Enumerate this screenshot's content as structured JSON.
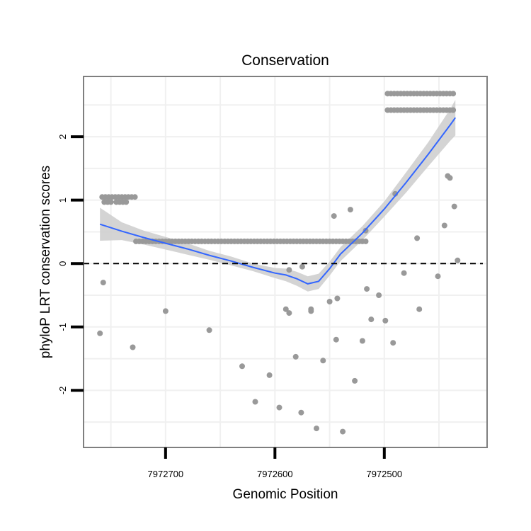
{
  "chart_data": {
    "type": "scatter",
    "title": "Conservation",
    "xlabel": "Genomic Position",
    "ylabel": "phyloP LRT conservation scores",
    "x_reversed": true,
    "xlim": [
      7972775,
      7972406
    ],
    "ylim": [
      -2.9,
      2.95
    ],
    "x_ticks": [
      {
        "value": 7972700,
        "label": "7972700"
      },
      {
        "value": 7972600,
        "label": "7972600"
      },
      {
        "value": 7972500,
        "label": "7972500"
      }
    ],
    "y_ticks": [
      {
        "value": 2,
        "label": "2"
      },
      {
        "value": 1,
        "label": "1"
      },
      {
        "value": 0,
        "label": "0"
      },
      {
        "value": -1,
        "label": "-1"
      },
      {
        "value": -2,
        "label": "-2"
      }
    ],
    "reference_line": {
      "y": 0,
      "style": "dashed"
    },
    "grid": true,
    "colors": {
      "points": "#999999",
      "smooth": "#3366FF",
      "ribbon": "#cccccc",
      "frame": "#7f7f7f",
      "grid": "#f0f0f0"
    },
    "smooth": {
      "x": [
        7972760,
        7972740,
        7972720,
        7972700,
        7972680,
        7972660,
        7972640,
        7972620,
        7972600,
        7972590,
        7972580,
        7972570,
        7972560,
        7972550,
        7972540,
        7972520,
        7972500,
        7972480,
        7972460,
        7972440,
        7972435
      ],
      "y": [
        0.62,
        0.51,
        0.41,
        0.32,
        0.23,
        0.13,
        0.04,
        -0.06,
        -0.15,
        -0.18,
        -0.24,
        -0.32,
        -0.28,
        -0.08,
        0.15,
        0.48,
        0.86,
        1.28,
        1.72,
        2.18,
        2.3
      ],
      "ymin": [
        0.36,
        0.37,
        0.3,
        0.22,
        0.14,
        0.06,
        -0.03,
        -0.12,
        -0.23,
        -0.28,
        -0.35,
        -0.44,
        -0.4,
        -0.19,
        0.04,
        0.37,
        0.74,
        1.12,
        1.53,
        1.93,
        2.02
      ],
      "ymax": [
        0.88,
        0.65,
        0.52,
        0.42,
        0.32,
        0.2,
        0.11,
        0.0,
        -0.07,
        -0.08,
        -0.13,
        -0.2,
        -0.16,
        0.03,
        0.26,
        0.59,
        0.98,
        1.44,
        1.91,
        2.43,
        2.58
      ]
    },
    "points": {
      "x": [
        7972758,
        7972755,
        7972752,
        7972749,
        7972746,
        7972743,
        7972740,
        7972737,
        7972734,
        7972731,
        7972728,
        7972756,
        7972753,
        7972750,
        7972745,
        7972742,
        7972739,
        7972736,
        7972727,
        7972724,
        7972721,
        7972718,
        7972715,
        7972712,
        7972709,
        7972706,
        7972703,
        7972700,
        7972697,
        7972694,
        7972691,
        7972688,
        7972685,
        7972682,
        7972679,
        7972676,
        7972673,
        7972670,
        7972667,
        7972664,
        7972661,
        7972658,
        7972655,
        7972652,
        7972649,
        7972646,
        7972643,
        7972640,
        7972637,
        7972634,
        7972631,
        7972628,
        7972625,
        7972622,
        7972619,
        7972616,
        7972613,
        7972610,
        7972607,
        7972604,
        7972601,
        7972598,
        7972595,
        7972592,
        7972589,
        7972586,
        7972583,
        7972580,
        7972577,
        7972574,
        7972571,
        7972568,
        7972565,
        7972562,
        7972559,
        7972556,
        7972553,
        7972550,
        7972547,
        7972544,
        7972541,
        7972538,
        7972535,
        7972532,
        7972529,
        7972526,
        7972523,
        7972520,
        7972517,
        7972497,
        7972494,
        7972491,
        7972488,
        7972485,
        7972482,
        7972479,
        7972476,
        7972473,
        7972470,
        7972467,
        7972464,
        7972461,
        7972458,
        7972455,
        7972452,
        7972449,
        7972446,
        7972443,
        7972440,
        7972437,
        7972497,
        7972494,
        7972491,
        7972488,
        7972485,
        7972482,
        7972479,
        7972476,
        7972473,
        7972470,
        7972467,
        7972464,
        7972461,
        7972458,
        7972455,
        7972452,
        7972449,
        7972446,
        7972443,
        7972440,
        7972437,
        7972760,
        7972757,
        7972730,
        7972700,
        7972660,
        7972630,
        7972618,
        7972605,
        7972596,
        7972590,
        7972587,
        7972581,
        7972576,
        7972567,
        7972562,
        7972556,
        7972550,
        7972544,
        7972538,
        7972527,
        7972520,
        7972516,
        7972512,
        7972505,
        7972499,
        7972492,
        7972482,
        7972470,
        7972451,
        7972445,
        7972440,
        7972433,
        7972442,
        7972436,
        7972468,
        7972531,
        7972546,
        7972567,
        7972575,
        7972587,
        7972543,
        7972490,
        7972517
      ],
      "y": [
        1.05,
        1.05,
        1.05,
        1.05,
        1.05,
        1.05,
        1.05,
        1.05,
        1.05,
        1.05,
        1.05,
        0.97,
        0.97,
        0.97,
        0.97,
        0.97,
        0.97,
        0.97,
        0.35,
        0.35,
        0.35,
        0.35,
        0.35,
        0.35,
        0.35,
        0.35,
        0.35,
        0.35,
        0.35,
        0.35,
        0.35,
        0.35,
        0.35,
        0.35,
        0.35,
        0.35,
        0.35,
        0.35,
        0.35,
        0.35,
        0.35,
        0.35,
        0.35,
        0.35,
        0.35,
        0.35,
        0.35,
        0.35,
        0.35,
        0.35,
        0.35,
        0.35,
        0.35,
        0.35,
        0.35,
        0.35,
        0.35,
        0.35,
        0.35,
        0.35,
        0.35,
        0.35,
        0.35,
        0.35,
        0.35,
        0.35,
        0.35,
        0.35,
        0.35,
        0.35,
        0.35,
        0.35,
        0.35,
        0.35,
        0.35,
        0.35,
        0.35,
        0.35,
        0.35,
        0.35,
        0.35,
        0.35,
        0.35,
        0.35,
        0.35,
        0.35,
        0.35,
        0.35,
        0.35,
        2.68,
        2.68,
        2.68,
        2.68,
        2.68,
        2.68,
        2.68,
        2.68,
        2.68,
        2.68,
        2.68,
        2.68,
        2.68,
        2.68,
        2.68,
        2.68,
        2.68,
        2.68,
        2.68,
        2.68,
        2.68,
        2.42,
        2.42,
        2.42,
        2.42,
        2.42,
        2.42,
        2.42,
        2.42,
        2.42,
        2.42,
        2.42,
        2.42,
        2.42,
        2.42,
        2.42,
        2.42,
        2.42,
        2.42,
        2.42,
        2.42,
        2.42,
        -1.1,
        -0.3,
        -1.32,
        -0.75,
        -1.05,
        -1.62,
        -2.18,
        -1.76,
        -2.27,
        -0.72,
        -0.78,
        -1.47,
        -2.35,
        -0.75,
        -2.6,
        -1.53,
        -0.6,
        -1.2,
        -2.65,
        -1.85,
        -1.22,
        -0.4,
        -0.88,
        -0.5,
        -0.9,
        -1.25,
        -0.15,
        0.4,
        -0.2,
        0.6,
        1.35,
        0.05,
        1.38,
        0.9,
        -0.72,
        0.85,
        0.75,
        -0.72,
        -0.05,
        -0.1,
        -0.55,
        1.1,
        0.52
      ]
    }
  }
}
